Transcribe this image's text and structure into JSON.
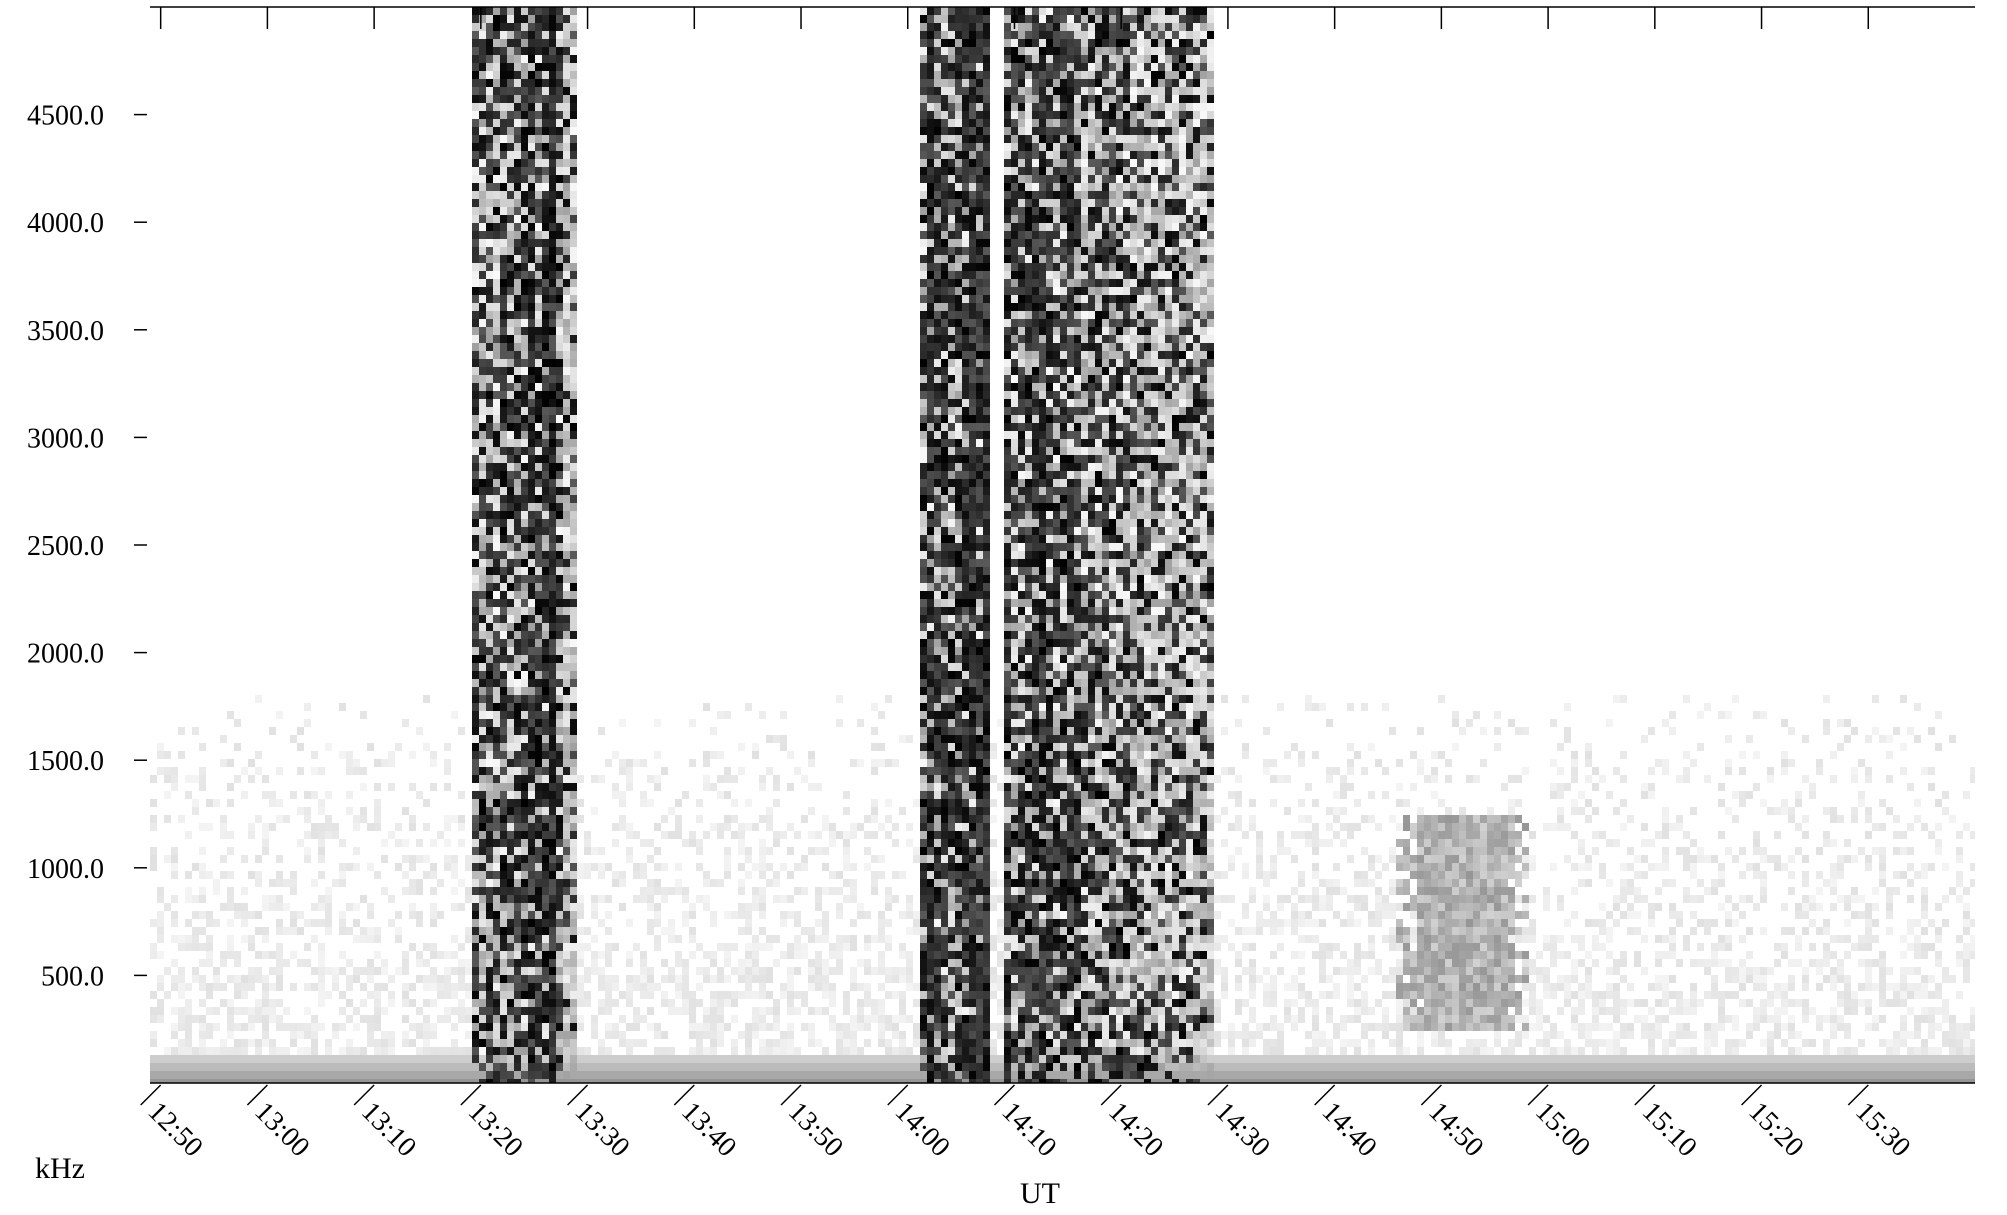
{
  "chart_data": {
    "type": "heatmap",
    "title": "",
    "xlabel": "UT",
    "ylabel": "kHz",
    "colormap": "grayscale, white = low intensity, black = high intensity",
    "x_range_minutes_ut": [
      769,
      940
    ],
    "x_ticks": [
      "12:50",
      "13:00",
      "13:10",
      "13:20",
      "13:30",
      "13:40",
      "13:50",
      "14:00",
      "14:10",
      "14:20",
      "14:30",
      "14:40",
      "14:50",
      "15:00",
      "15:10",
      "15:20",
      "15:30"
    ],
    "y_range_khz": [
      0,
      5000
    ],
    "y_ticks": [
      "500.0",
      "1000.0",
      "1500.0",
      "2000.0",
      "2500.0",
      "3000.0",
      "3500.0",
      "4000.0",
      "4500.0"
    ],
    "grid": false,
    "regions": [
      {
        "name": "burst 1",
        "start": "13:19",
        "end": "13:29",
        "f_max_khz": 5000,
        "intensity": "high"
      },
      {
        "name": "burst 2",
        "start": "14:01",
        "end": "14:08",
        "f_max_khz": 5000,
        "intensity": "very high"
      },
      {
        "name": "burst 3",
        "start": "14:09",
        "end": "14:29",
        "f_max_khz": 5000,
        "intensity": "high, decreasing to the right"
      },
      {
        "name": "patch",
        "start": "14:46",
        "end": "14:58",
        "f_min_khz": 250,
        "f_max_khz": 1250,
        "intensity": "medium"
      }
    ],
    "background_noise_khz": [
      0,
      1800
    ],
    "colors": {
      "background": "#ffffff",
      "noise": "#e6e6e6",
      "ink": "#000000"
    }
  }
}
